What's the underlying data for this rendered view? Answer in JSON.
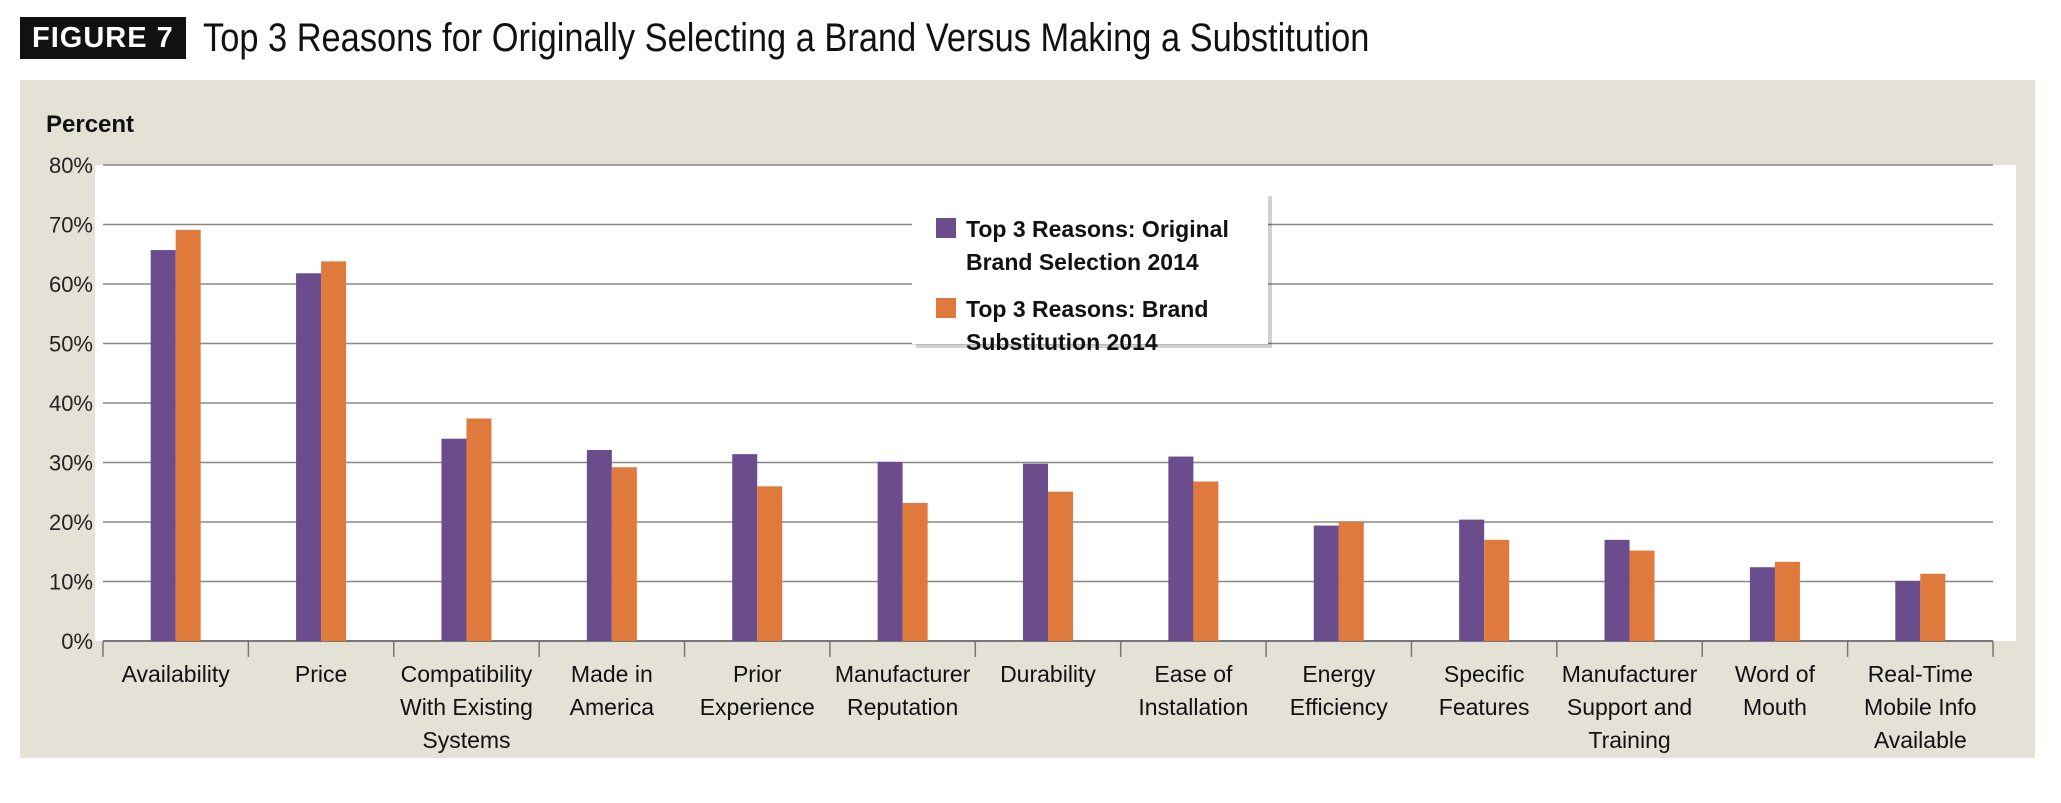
{
  "figure": {
    "badge": "FIGURE 7",
    "title": "Top 3 Reasons for Originally Selecting a Brand Versus Making a Substitution"
  },
  "colors": {
    "panel_bg": "#e4e2d6",
    "plot_bg": "#ffffff",
    "grid": "#888888",
    "original": "#6b4c8c",
    "substitution": "#e07a3c"
  },
  "chart_data": {
    "type": "bar",
    "ylabel": "Percent",
    "ylim": [
      0,
      80
    ],
    "yticks": [
      "0%",
      "10%",
      "20%",
      "30%",
      "40%",
      "50%",
      "60%",
      "70%",
      "80%"
    ],
    "ytick_values": [
      0,
      10,
      20,
      30,
      40,
      50,
      60,
      70,
      80
    ],
    "grid": true,
    "legend_position": "top-center",
    "categories": [
      [
        "Availability"
      ],
      [
        "Price"
      ],
      [
        "Compatibility",
        "With Existing",
        "Systems"
      ],
      [
        "Made in",
        "America"
      ],
      [
        "Prior",
        "Experience"
      ],
      [
        "Manufacturer",
        "Reputation"
      ],
      [
        "Durability"
      ],
      [
        "Ease of",
        "Installation"
      ],
      [
        "Energy",
        "Efficiency"
      ],
      [
        "Specific",
        "Features"
      ],
      [
        "Manufacturer",
        "Support and",
        "Training"
      ],
      [
        "Word of",
        "Mouth"
      ],
      [
        "Real-Time",
        "Mobile Info",
        "Available"
      ]
    ],
    "series": [
      {
        "name_lines": [
          "Top 3 Reasons: Original",
          "Brand Selection 2014"
        ],
        "color": "#6b4c8c",
        "values": [
          65.7,
          61.8,
          34.0,
          32.1,
          31.4,
          30.1,
          29.8,
          31.0,
          19.4,
          20.4,
          17.0,
          12.4,
          10.1
        ]
      },
      {
        "name_lines": [
          "Top 3 Reasons: Brand",
          "Substitution 2014"
        ],
        "color": "#e07a3c",
        "values": [
          69.1,
          63.8,
          37.4,
          29.2,
          26.0,
          23.2,
          25.1,
          26.8,
          20.0,
          17.0,
          15.2,
          13.3,
          11.3
        ]
      }
    ]
  }
}
